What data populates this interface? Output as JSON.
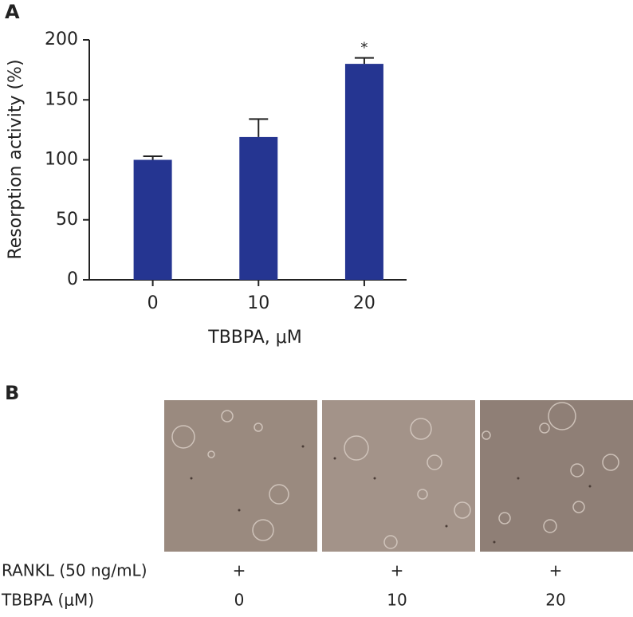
{
  "panel_labels": [
    "A",
    "B"
  ],
  "chart_data": {
    "type": "bar",
    "ylabel": "Resorption activity (%)",
    "xlabel": "TBBPA, μM",
    "categories": [
      "0",
      "10",
      "20"
    ],
    "values": [
      100,
      119,
      180
    ],
    "errors": [
      3,
      15,
      5
    ],
    "significance": [
      null,
      null,
      "*"
    ],
    "color": "#253591",
    "ylim": [
      0,
      200
    ],
    "yticks": [
      0,
      50,
      100,
      150,
      200
    ],
    "grid": false
  },
  "panel_b": {
    "rows": [
      {
        "label": "RANKL (50 ng/mL)",
        "cells": [
          "+",
          "+",
          "+"
        ]
      },
      {
        "label": "TBBPA (μM)",
        "cells": [
          0,
          10,
          20
        ]
      }
    ]
  }
}
